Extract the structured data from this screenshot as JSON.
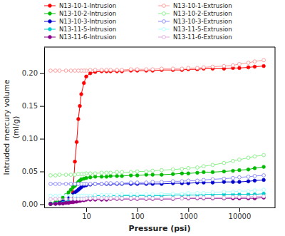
{
  "chart_data": {
    "type": "line",
    "xlabel": "Pressure (psi)",
    "ylabel": "Intruded mercury volume\n(ml/g)",
    "log": "x",
    "grid": false,
    "legend": "upper left",
    "xlim": [
      1.5,
      50000
    ],
    "ylim": [
      -0.005,
      0.24
    ],
    "xticks": [
      10,
      100,
      1000,
      10000
    ],
    "yticks": [
      {
        "value": 0.0,
        "label": "0.00"
      },
      0.05,
      {
        "value": 0.1,
        "label": "0.10"
      },
      0.15,
      {
        "value": 0.2,
        "label": "0.20"
      }
    ],
    "series": [
      {
        "name": "N13-10-1-Intrusion",
        "color": "#ff0000",
        "marker": "circle",
        "x": [
          2.0,
          2.5,
          3.0,
          3.5,
          4.0,
          4.5,
          5.0,
          5.5,
          6.0,
          6.5,
          7.0,
          7.5,
          8.0,
          9.0,
          10.0,
          12.0,
          15.0,
          20.0,
          25.0,
          30.0,
          40.0,
          50.0,
          75.0,
          100.0,
          150.0,
          200.0,
          300.0,
          500.0,
          750.0,
          1000.0,
          1500.0,
          2000.0,
          3000.0,
          5000.0,
          7500.0,
          10000.0,
          15000.0,
          20000.0,
          30000.0
        ],
        "values": [
          0.0005,
          0.001,
          0.002,
          0.003,
          0.004,
          0.006,
          0.01,
          0.018,
          0.065,
          0.095,
          0.13,
          0.15,
          0.168,
          0.185,
          0.195,
          0.2,
          0.202,
          0.203,
          0.203,
          0.203,
          0.203,
          0.203,
          0.204,
          0.204,
          0.204,
          0.204,
          0.205,
          0.205,
          0.205,
          0.206,
          0.206,
          0.207,
          0.207,
          0.207,
          0.208,
          0.208,
          0.209,
          0.21,
          0.211
        ]
      },
      {
        "name": "N13-10-1-Extrusion",
        "color": "#ff9999",
        "marker": "open-circle",
        "x": [
          30000.0,
          20000.0,
          15000.0,
          10000.0,
          7500.0,
          5000.0,
          3000.0,
          2000.0,
          1500.0,
          1000.0,
          750.0,
          500.0,
          300.0,
          200.0,
          150.0,
          100.0,
          75.0,
          50.0,
          40.0,
          30.0,
          25.0,
          20.0,
          15.0,
          12.0,
          10.0,
          9.0,
          8.0,
          7.0,
          6.0,
          5.0,
          4.0,
          3.0,
          2.5,
          2.0
        ],
        "values": [
          0.22,
          0.218,
          0.216,
          0.214,
          0.212,
          0.211,
          0.21,
          0.209,
          0.208,
          0.208,
          0.207,
          0.207,
          0.207,
          0.206,
          0.206,
          0.206,
          0.206,
          0.205,
          0.205,
          0.205,
          0.205,
          0.205,
          0.205,
          0.205,
          0.204,
          0.204,
          0.204,
          0.204,
          0.204,
          0.204,
          0.204,
          0.204,
          0.204,
          0.204
        ]
      },
      {
        "name": "N13-10-2-Intrusion",
        "color": "#00bb00",
        "marker": "circle",
        "x": [
          2.0,
          2.5,
          3.0,
          3.5,
          4.0,
          4.5,
          5.0,
          5.5,
          6.0,
          6.5,
          7.0,
          7.5,
          8.0,
          9.0,
          10.0,
          12.0,
          15.0,
          20.0,
          25.0,
          30.0,
          40.0,
          50.0,
          75.0,
          100.0,
          150.0,
          200.0,
          300.0,
          500.0,
          750.0,
          1000.0,
          1500.0,
          2000.0,
          3000.0,
          5000.0,
          7500.0,
          10000.0,
          15000.0,
          20000.0,
          30000.0
        ],
        "values": [
          0.001,
          0.003,
          0.006,
          0.01,
          0.014,
          0.018,
          0.022,
          0.026,
          0.028,
          0.031,
          0.034,
          0.036,
          0.038,
          0.039,
          0.04,
          0.041,
          0.042,
          0.042,
          0.042,
          0.043,
          0.043,
          0.043,
          0.044,
          0.044,
          0.045,
          0.045,
          0.045,
          0.046,
          0.047,
          0.047,
          0.048,
          0.049,
          0.049,
          0.05,
          0.051,
          0.052,
          0.053,
          0.055,
          0.057
        ]
      },
      {
        "name": "N13-10-2-Extrusion",
        "color": "#88ee88",
        "marker": "open-circle",
        "x": [
          30000.0,
          20000.0,
          15000.0,
          10000.0,
          7500.0,
          5000.0,
          3000.0,
          2000.0,
          1500.0,
          1000.0,
          750.0,
          500.0,
          300.0,
          200.0,
          150.0,
          100.0,
          75.0,
          50.0,
          40.0,
          30.0,
          25.0,
          20.0,
          15.0,
          12.0,
          10.0,
          9.0,
          8.0,
          7.0,
          6.0,
          5.0,
          4.0,
          3.0,
          2.5,
          2.0
        ],
        "values": [
          0.075,
          0.073,
          0.071,
          0.068,
          0.066,
          0.063,
          0.06,
          0.058,
          0.056,
          0.055,
          0.054,
          0.053,
          0.052,
          0.051,
          0.05,
          0.05,
          0.049,
          0.049,
          0.049,
          0.048,
          0.048,
          0.048,
          0.047,
          0.047,
          0.047,
          0.046,
          0.046,
          0.046,
          0.045,
          0.045,
          0.045,
          0.045,
          0.044,
          0.044
        ]
      },
      {
        "name": "N13-10-3-Intrusion",
        "color": "#0000cc",
        "marker": "circle",
        "x": [
          2.0,
          2.5,
          3.0,
          3.5,
          4.0,
          4.5,
          5.0,
          5.5,
          6.0,
          6.5,
          7.0,
          7.5,
          8.0,
          9.0,
          10.0,
          12.0,
          15.0,
          20.0,
          25.0,
          30.0,
          40.0,
          50.0,
          75.0,
          100.0,
          150.0,
          200.0,
          300.0,
          500.0,
          750.0,
          1000.0,
          1500.0,
          2000.0,
          3000.0,
          5000.0,
          7500.0,
          10000.0,
          15000.0,
          20000.0,
          30000.0
        ],
        "values": [
          0.0005,
          0.001,
          0.002,
          0.004,
          0.006,
          0.009,
          0.012,
          0.015,
          0.018,
          0.02,
          0.022,
          0.024,
          0.026,
          0.028,
          0.029,
          0.03,
          0.031,
          0.031,
          0.031,
          0.031,
          0.031,
          0.031,
          0.031,
          0.031,
          0.031,
          0.031,
          0.031,
          0.032,
          0.032,
          0.032,
          0.033,
          0.033,
          0.033,
          0.034,
          0.034,
          0.034,
          0.035,
          0.036,
          0.037
        ]
      },
      {
        "name": "N13-10-3-Extrusion",
        "color": "#8888ff",
        "marker": "open-circle",
        "x": [
          30000.0,
          20000.0,
          15000.0,
          10000.0,
          7500.0,
          5000.0,
          3000.0,
          2000.0,
          1500.0,
          1000.0,
          750.0,
          500.0,
          300.0,
          200.0,
          150.0,
          100.0,
          75.0,
          50.0,
          40.0,
          30.0,
          25.0,
          20.0,
          15.0,
          12.0,
          10.0,
          9.0,
          8.0,
          7.0,
          6.0,
          5.0,
          4.0,
          3.0,
          2.5,
          2.0
        ],
        "values": [
          0.044,
          0.043,
          0.042,
          0.041,
          0.04,
          0.039,
          0.038,
          0.037,
          0.036,
          0.036,
          0.035,
          0.035,
          0.034,
          0.034,
          0.033,
          0.033,
          0.033,
          0.032,
          0.032,
          0.032,
          0.032,
          0.031,
          0.031,
          0.031,
          0.031,
          0.031,
          0.031,
          0.031,
          0.031,
          0.031,
          0.031,
          0.031,
          0.031,
          0.031
        ]
      },
      {
        "name": "N13-11-5-Intrusion",
        "color": "#00cccc",
        "marker": "circle",
        "x": [
          2.0,
          2.5,
          3.0,
          3.5,
          4.0,
          4.5,
          5.0,
          5.5,
          6.0,
          6.5,
          7.0,
          7.5,
          8.0,
          9.0,
          10.0,
          12.0,
          15.0,
          20.0,
          25.0,
          30.0,
          40.0,
          50.0,
          75.0,
          100.0,
          150.0,
          200.0,
          300.0,
          500.0,
          750.0,
          1000.0,
          1500.0,
          2000.0,
          3000.0,
          5000.0,
          7500.0,
          10000.0,
          15000.0,
          20000.0,
          30000.0
        ],
        "values": [
          0.0003,
          0.001,
          0.001,
          0.002,
          0.003,
          0.004,
          0.005,
          0.006,
          0.007,
          0.008,
          0.009,
          0.01,
          0.011,
          0.011,
          0.012,
          0.012,
          0.013,
          0.013,
          0.013,
          0.013,
          0.013,
          0.013,
          0.013,
          0.013,
          0.013,
          0.013,
          0.013,
          0.014,
          0.014,
          0.014,
          0.014,
          0.015,
          0.015,
          0.015,
          0.015,
          0.015,
          0.015,
          0.015,
          0.016
        ]
      },
      {
        "name": "N13-11-5-Extrusion",
        "color": "#aaffff",
        "marker": "open-circle",
        "x": [
          30000.0,
          20000.0,
          15000.0,
          10000.0,
          7500.0,
          5000.0,
          3000.0,
          2000.0,
          1500.0,
          1000.0,
          750.0,
          500.0,
          300.0,
          200.0,
          150.0,
          100.0,
          75.0,
          50.0,
          40.0,
          30.0,
          25.0,
          20.0,
          15.0,
          12.0,
          10.0,
          9.0,
          8.0,
          7.0,
          6.0,
          5.0,
          4.0,
          3.0,
          2.5,
          2.0
        ],
        "values": [
          0.022,
          0.021,
          0.02,
          0.02,
          0.019,
          0.019,
          0.018,
          0.017,
          0.017,
          0.017,
          0.016,
          0.016,
          0.016,
          0.015,
          0.015,
          0.015,
          0.015,
          0.015,
          0.014,
          0.014,
          0.014,
          0.014,
          0.014,
          0.013,
          0.013,
          0.013,
          0.013,
          0.013,
          0.013,
          0.013,
          0.013,
          0.013,
          0.013,
          0.013
        ]
      },
      {
        "name": "N13-11-6-Intrusion",
        "color": "#880088",
        "marker": "circle",
        "x": [
          2.0,
          2.5,
          3.0,
          3.5,
          4.0,
          4.5,
          5.0,
          5.5,
          6.0,
          6.5,
          7.0,
          7.5,
          8.0,
          9.0,
          10.0,
          12.0,
          15.0,
          20.0,
          25.0,
          30.0,
          40.0,
          50.0,
          75.0,
          100.0,
          150.0,
          200.0,
          300.0,
          500.0,
          750.0,
          1000.0,
          1500.0,
          2000.0,
          3000.0,
          5000.0,
          7500.0,
          10000.0,
          15000.0,
          20000.0,
          30000.0
        ],
        "values": [
          0.0002,
          0.0005,
          0.001,
          0.001,
          0.002,
          0.002,
          0.003,
          0.003,
          0.004,
          0.004,
          0.005,
          0.005,
          0.006,
          0.006,
          0.007,
          0.007,
          0.007,
          0.007,
          0.007,
          0.008,
          0.008,
          0.008,
          0.008,
          0.008,
          0.008,
          0.008,
          0.008,
          0.008,
          0.009,
          0.009,
          0.009,
          0.009,
          0.009,
          0.009,
          0.009,
          0.009,
          0.009,
          0.009,
          0.01
        ]
      },
      {
        "name": "N13-11-6-Extrusion",
        "color": "#ddaadd",
        "marker": "open-circle",
        "x": [
          30000.0,
          20000.0,
          15000.0,
          10000.0,
          7500.0,
          5000.0,
          3000.0,
          2000.0,
          1500.0,
          1000.0,
          750.0,
          500.0,
          300.0,
          200.0,
          150.0,
          100.0,
          75.0,
          50.0,
          40.0,
          30.0,
          25.0,
          20.0,
          15.0,
          12.0,
          10.0,
          9.0,
          8.0,
          7.0,
          6.0,
          5.0,
          4.0,
          3.0,
          2.5,
          2.0
        ],
        "values": [
          0.012,
          0.012,
          0.011,
          0.011,
          0.011,
          0.01,
          0.01,
          0.01,
          0.01,
          0.01,
          0.009,
          0.009,
          0.009,
          0.009,
          0.009,
          0.009,
          0.009,
          0.009,
          0.009,
          0.009,
          0.009,
          0.009,
          0.009,
          0.009,
          0.009,
          0.008,
          0.008,
          0.008,
          0.008,
          0.008,
          0.008,
          0.008,
          0.008,
          0.008
        ]
      }
    ]
  }
}
